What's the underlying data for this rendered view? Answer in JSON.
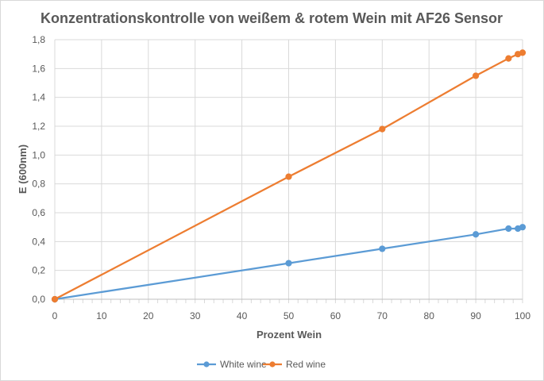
{
  "chart_data": {
    "type": "line",
    "title": "Konzentrationskontrolle von weißem & rotem Wein mit AF26 Sensor",
    "xlabel": "Prozent Wein",
    "ylabel": "E (600nm)",
    "xlim": [
      0,
      100
    ],
    "ylim": [
      0,
      1.8
    ],
    "x_ticks": [
      "0",
      "10",
      "20",
      "30",
      "40",
      "50",
      "60",
      "70",
      "80",
      "90",
      "100"
    ],
    "y_ticks": [
      "0,0",
      "0,2",
      "0,4",
      "0,6",
      "0,8",
      "1,0",
      "1,2",
      "1,4",
      "1,6",
      "1,8"
    ],
    "grid": true,
    "legend_position": "bottom",
    "series": [
      {
        "name": "White wine",
        "color": "#5b9bd5",
        "points": [
          [
            0,
            0.0
          ],
          [
            50,
            0.25
          ],
          [
            70,
            0.35
          ],
          [
            90,
            0.45
          ],
          [
            97,
            0.49
          ],
          [
            99,
            0.49
          ],
          [
            100,
            0.5
          ]
        ]
      },
      {
        "name": "Red wine",
        "color": "#ed7d31",
        "points": [
          [
            0,
            0.0
          ],
          [
            50,
            0.85
          ],
          [
            70,
            1.18
          ],
          [
            90,
            1.55
          ],
          [
            97,
            1.67
          ],
          [
            99,
            1.7
          ],
          [
            100,
            1.71
          ]
        ]
      }
    ]
  }
}
